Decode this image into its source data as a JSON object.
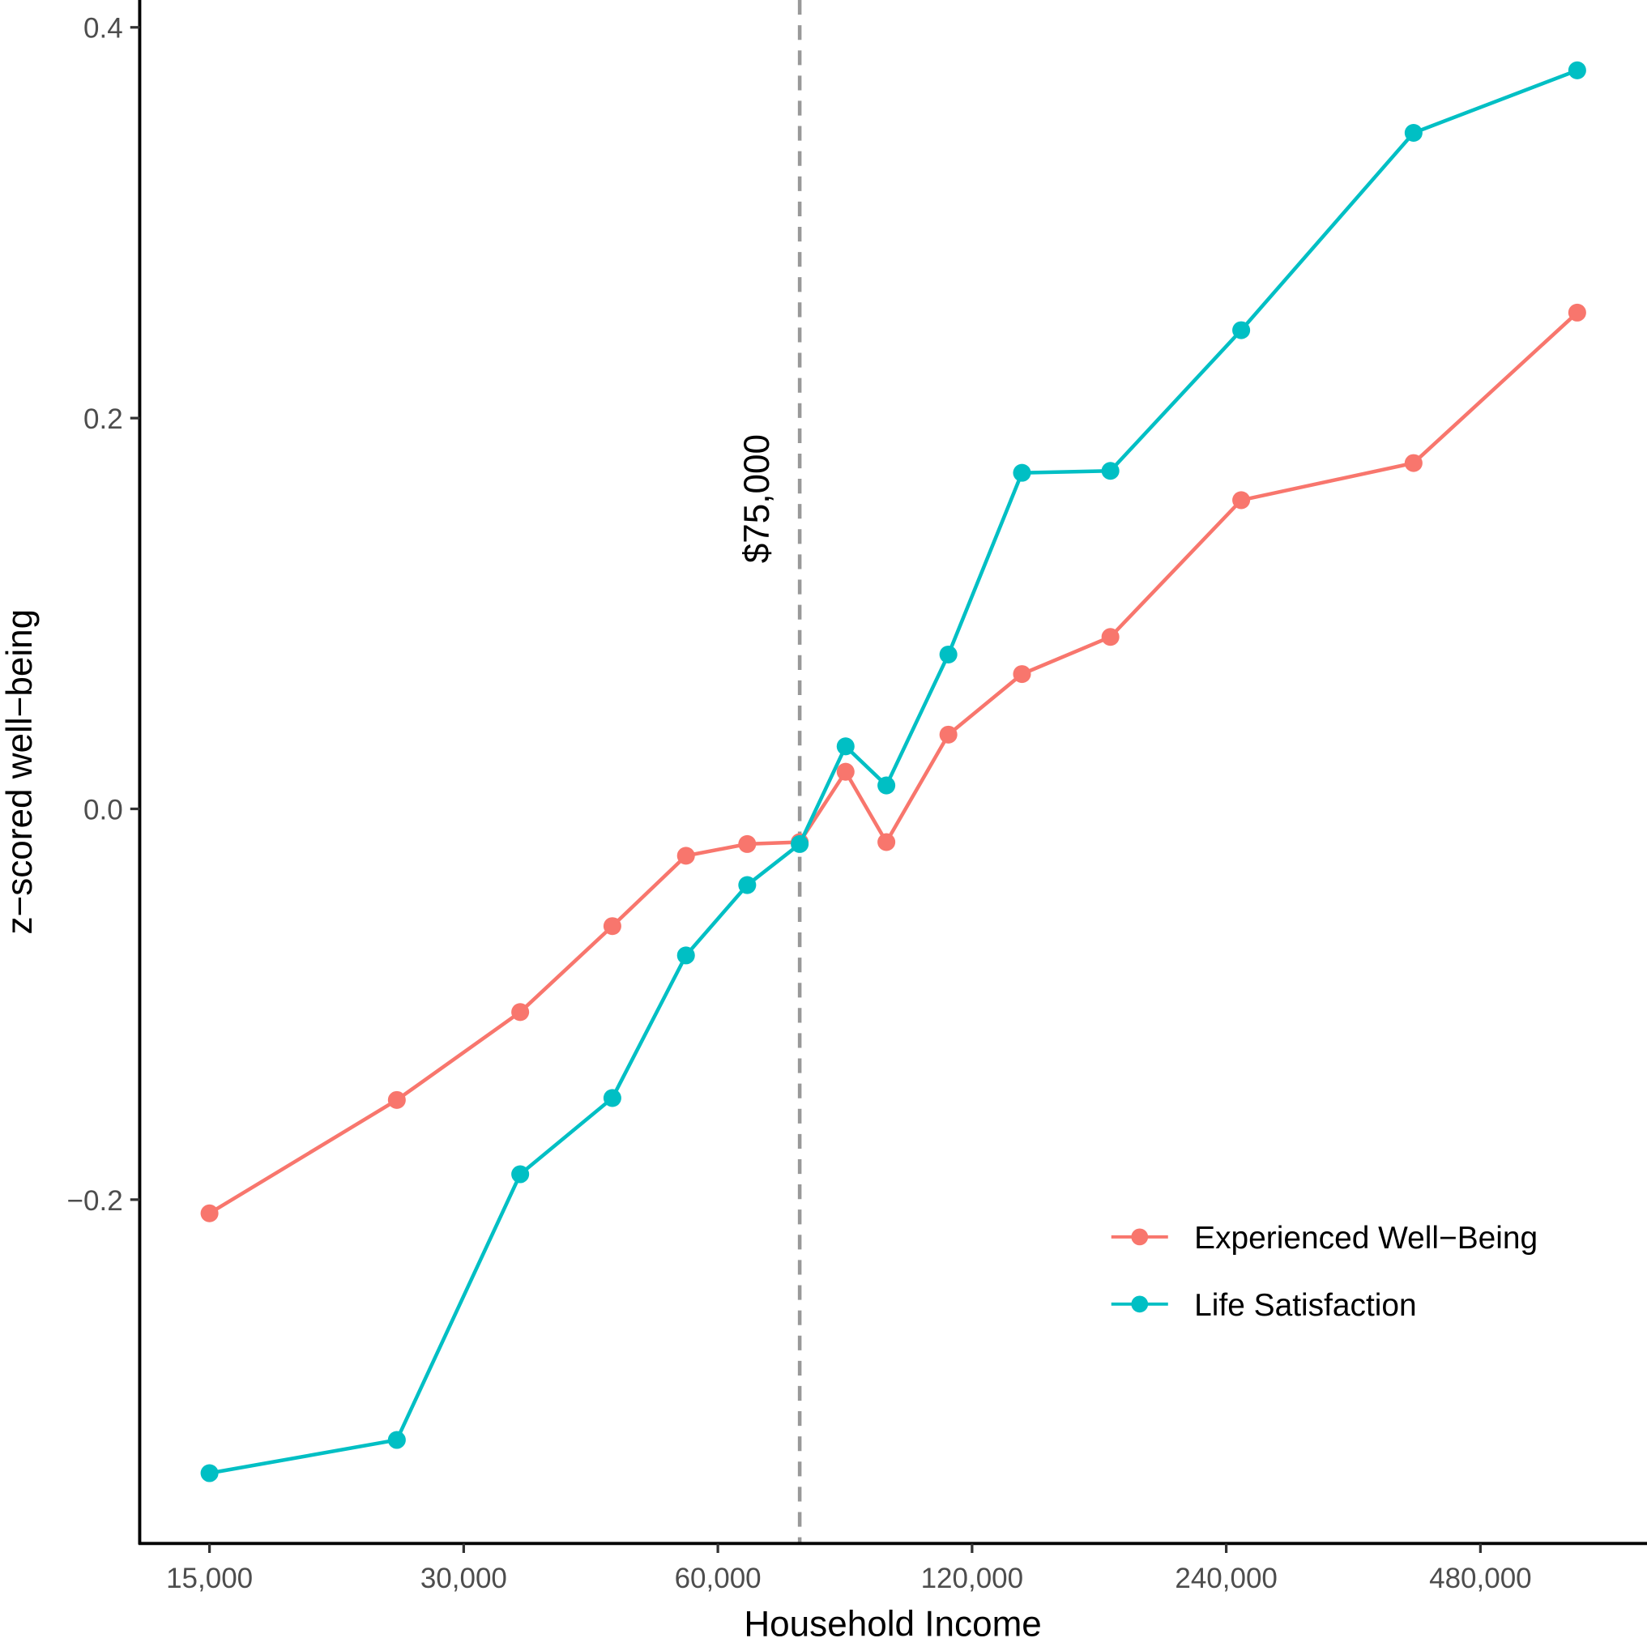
{
  "chart_data": {
    "type": "line",
    "title": "",
    "xlabel": "Household Income",
    "ylabel": "z−scored well−being",
    "x_scale": "log",
    "xlim": [
      12400,
      756000
    ],
    "ylim": [
      -0.376,
      0.414
    ],
    "x_ticks": [
      15000,
      30000,
      60000,
      120000,
      240000,
      480000
    ],
    "x_tick_labels": [
      "15,000",
      "30,000",
      "60,000",
      "120,000",
      "240,000",
      "480,000"
    ],
    "y_ticks": [
      -0.2,
      0.0,
      0.2,
      0.4
    ],
    "y_tick_labels": [
      "−0.2",
      "0.0",
      "0.2",
      "0.4"
    ],
    "grid": false,
    "legend_position": "bottom-right",
    "x": [
      15000,
      25000,
      35000,
      45000,
      55000,
      65000,
      75000,
      85000,
      95000,
      112500,
      137500,
      175000,
      250000,
      400000,
      625000
    ],
    "series": [
      {
        "name": "Experienced Well−Being",
        "color": "#F8766D",
        "values": [
          -0.207,
          -0.149,
          -0.104,
          -0.06,
          -0.024,
          -0.018,
          -0.017,
          0.019,
          -0.017,
          0.038,
          0.069,
          0.088,
          0.158,
          0.177,
          0.254
        ]
      },
      {
        "name": "Life Satisfaction",
        "color": "#00BFC4",
        "values": [
          -0.34,
          -0.323,
          -0.187,
          -0.148,
          -0.075,
          -0.039,
          -0.018,
          0.032,
          0.012,
          0.079,
          0.172,
          0.173,
          0.245,
          0.346,
          0.378
        ]
      }
    ],
    "annotations": [
      {
        "type": "vline",
        "x": 75000,
        "label": "$75,000",
        "color": "#999999",
        "style": "dashed"
      }
    ]
  }
}
